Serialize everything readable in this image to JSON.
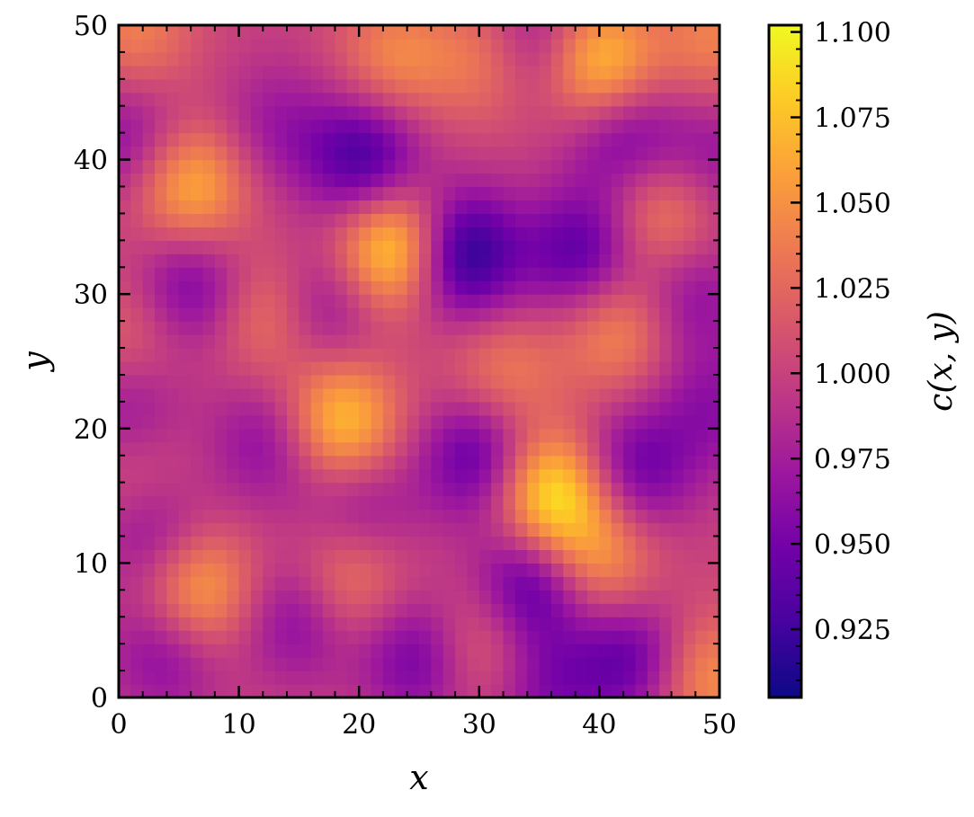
{
  "chart_data": {
    "type": "heatmap",
    "title": "",
    "xlabel": "x",
    "ylabel": "y",
    "xlim": [
      0,
      50
    ],
    "ylim": [
      0,
      50
    ],
    "grid": false,
    "colormap": "plasma",
    "grid_size": [
      50,
      50
    ],
    "x_ticks": [
      "0",
      "10",
      "20",
      "30",
      "40",
      "50"
    ],
    "y_ticks": [
      "0",
      "10",
      "20",
      "30",
      "40",
      "50"
    ],
    "colorbar": {
      "label": "c(x, y)",
      "range": [
        0.905,
        1.102
      ],
      "ticks": [
        "0.925",
        "0.950",
        "0.975",
        "1.000",
        "1.025",
        "1.050",
        "1.075",
        "1.100"
      ],
      "colors": [
        "#0d0887",
        "#46039f",
        "#7201a8",
        "#9c179e",
        "#bd3786",
        "#d8576b",
        "#ed7953",
        "#fb9f3a",
        "#fdca26",
        "#f0f921"
      ]
    },
    "field": {
      "baseline": 1.0,
      "features": [
        {
          "x": 40,
          "y": 47,
          "amp": 0.085
        },
        {
          "x": 6,
          "y": 38,
          "amp": 0.07
        },
        {
          "x": 23,
          "y": 33.5,
          "amp": 0.1
        },
        {
          "x": 18.5,
          "y": 20.5,
          "amp": 0.08
        },
        {
          "x": 36,
          "y": 15,
          "amp": 0.1
        },
        {
          "x": 6.5,
          "y": 8,
          "amp": 0.07
        },
        {
          "x": 45.5,
          "y": 36,
          "amp": 0.05
        },
        {
          "x": 31,
          "y": 47.5,
          "amp": 0.045
        },
        {
          "x": 23,
          "y": 47.5,
          "amp": 0.045
        },
        {
          "x": 12.5,
          "y": 28.5,
          "amp": 0.045
        },
        {
          "x": 41.5,
          "y": 27.5,
          "amp": 0.05
        },
        {
          "x": 19,
          "y": 9,
          "amp": 0.05
        },
        {
          "x": 40,
          "y": 10,
          "amp": 0.055
        },
        {
          "x": 32,
          "y": 24,
          "amp": 0.04
        },
        {
          "x": 1.5,
          "y": 27,
          "amp": 0.03
        },
        {
          "x": 49,
          "y": 1.5,
          "amp": 0.05
        },
        {
          "x": 30,
          "y": 4,
          "amp": 0.04
        },
        {
          "x": 2,
          "y": 16,
          "amp": 0.03
        },
        {
          "x": 49.5,
          "y": 49,
          "amp": 0.04
        },
        {
          "x": 1.5,
          "y": 49.5,
          "amp": 0.04
        },
        {
          "x": 28.5,
          "y": 33,
          "amp": -0.095
        },
        {
          "x": 20.5,
          "y": 40,
          "amp": -0.075
        },
        {
          "x": 34.5,
          "y": 8.5,
          "amp": -0.075
        },
        {
          "x": 30,
          "y": 18,
          "amp": -0.065
        },
        {
          "x": 38.5,
          "y": 33,
          "amp": -0.065
        },
        {
          "x": 42,
          "y": 42,
          "amp": -0.055
        },
        {
          "x": 6,
          "y": 30.5,
          "amp": -0.055
        },
        {
          "x": 42.5,
          "y": 3,
          "amp": -0.06
        },
        {
          "x": 25,
          "y": 3,
          "amp": -0.055
        },
        {
          "x": 3,
          "y": 12.5,
          "amp": -0.05
        },
        {
          "x": 4,
          "y": 3.5,
          "amp": -0.045
        },
        {
          "x": 34.5,
          "y": 48.5,
          "amp": -0.05
        },
        {
          "x": 1,
          "y": 41.5,
          "amp": -0.04
        },
        {
          "x": 49.5,
          "y": 40,
          "amp": -0.035
        },
        {
          "x": 15,
          "y": 6,
          "amp": -0.045
        },
        {
          "x": 20,
          "y": 14,
          "amp": -0.04
        },
        {
          "x": 12.5,
          "y": 19,
          "amp": -0.04
        },
        {
          "x": 43,
          "y": 17,
          "amp": -0.055
        },
        {
          "x": 47.5,
          "y": 30,
          "amp": -0.04
        },
        {
          "x": 1,
          "y": 21.5,
          "amp": -0.035
        },
        {
          "x": 49.5,
          "y": 21.5,
          "amp": -0.035
        },
        {
          "x": 17,
          "y": 29,
          "amp": -0.045
        },
        {
          "x": 35.5,
          "y": 0.5,
          "amp": -0.04
        },
        {
          "x": 13,
          "y": 42.5,
          "amp": -0.03
        }
      ]
    }
  }
}
